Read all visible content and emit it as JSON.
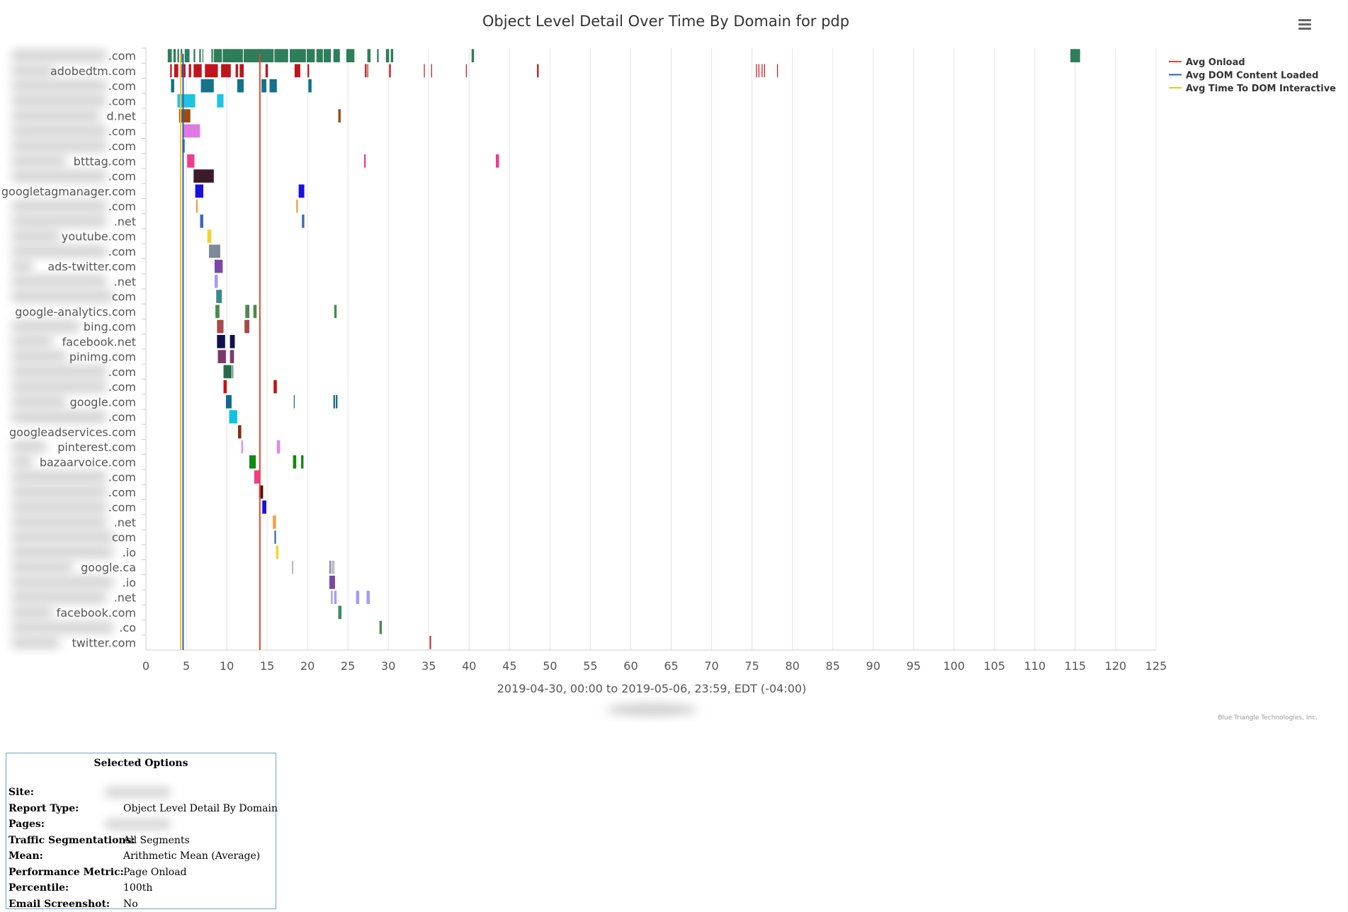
{
  "chart_data": {
    "type": "timeline",
    "title": "Object Level Detail Over Time By Domain for pdp",
    "xlabel": "2019-04-30, 00:00 to 2019-05-06, 23:59, EDT (-04:00)",
    "xlim": [
      0,
      125
    ],
    "xticks": [
      0,
      5,
      10,
      15,
      20,
      25,
      30,
      35,
      40,
      45,
      50,
      55,
      60,
      65,
      70,
      75,
      80,
      85,
      90,
      95,
      100,
      105,
      110,
      115,
      120,
      125
    ],
    "grid": true,
    "legend_position": "top-right",
    "markers": [
      {
        "name": "Avg Onload",
        "x": 14.1,
        "color": "#e8452c"
      },
      {
        "name": "Avg DOM Content Loaded",
        "x": 4.6,
        "color": "#2b5fb8"
      },
      {
        "name": "Avg Time To DOM Interactive",
        "x": 4.3,
        "color": "#f2c12e"
      }
    ],
    "domains": [
      {
        "label": ".com",
        "color": "#2e7d5b",
        "segments": [
          [
            2.7,
            3.2
          ],
          [
            3.4,
            3.7
          ],
          [
            3.9,
            4.1
          ],
          [
            4.3,
            4.5
          ],
          [
            4.8,
            5.4
          ],
          [
            5.9,
            6.1
          ],
          [
            6.6,
            6.8
          ],
          [
            7.0,
            7.1
          ],
          [
            8.1,
            8.3
          ],
          [
            8.4,
            9.4
          ],
          [
            9.5,
            12.0
          ],
          [
            12.1,
            15.8
          ],
          [
            15.9,
            17.6
          ],
          [
            17.8,
            19.8
          ],
          [
            19.9,
            20.9
          ],
          [
            21.1,
            21.9
          ],
          [
            22.0,
            22.9
          ],
          [
            23.2,
            24.0
          ],
          [
            24.8,
            25.8
          ],
          [
            27.4,
            27.8
          ],
          [
            28.6,
            28.8
          ],
          [
            29.7,
            30.1
          ],
          [
            30.3,
            30.6
          ],
          [
            40.3,
            40.6
          ],
          [
            114.4,
            115.6
          ]
        ]
      },
      {
        "label": "adobedtm.com",
        "color": "#c0141c",
        "segments": [
          [
            3.0,
            3.2
          ],
          [
            3.5,
            4.0
          ],
          [
            4.4,
            4.9
          ],
          [
            5.3,
            5.6
          ],
          [
            5.9,
            6.9
          ],
          [
            7.3,
            8.9
          ],
          [
            9.3,
            10.5
          ],
          [
            11.1,
            11.4
          ],
          [
            11.6,
            12.1
          ],
          [
            14.8,
            15.1
          ],
          [
            18.4,
            19.1
          ],
          [
            20.0,
            20.2
          ],
          [
            27.1,
            27.3
          ],
          [
            27.4,
            27.5
          ],
          [
            30.1,
            30.3
          ],
          [
            34.4,
            34.5
          ],
          [
            35.3,
            35.4
          ],
          [
            39.6,
            39.7
          ],
          [
            48.4,
            48.6
          ],
          [
            75.5,
            75.6
          ],
          [
            75.8,
            75.9
          ],
          [
            76.2,
            76.3
          ],
          [
            76.5,
            76.6
          ],
          [
            78.1,
            78.2
          ]
        ]
      },
      {
        "label": ".com",
        "color": "#14728a",
        "segments": [
          [
            3.1,
            3.5
          ],
          [
            6.8,
            8.4
          ],
          [
            11.3,
            12.1
          ],
          [
            14.3,
            14.9
          ],
          [
            15.3,
            16.2
          ],
          [
            20.1,
            20.5
          ]
        ]
      },
      {
        "label": ".com",
        "color": "#1ec3e0",
        "segments": [
          [
            3.9,
            6.1
          ],
          [
            8.8,
            9.6
          ]
        ]
      },
      {
        "label": "d.net",
        "color": "#9c4a10",
        "segments": [
          [
            4.1,
            5.5
          ],
          [
            23.8,
            24.1
          ]
        ]
      },
      {
        "label": ".com",
        "color": "#e07ae0",
        "segments": [
          [
            4.5,
            6.7
          ]
        ]
      },
      {
        "label": ".com",
        "color": "#2e7d5b",
        "segments": [
          [
            4.5,
            4.8
          ]
        ]
      },
      {
        "label": "btttag.com",
        "color": "#f03c8c",
        "segments": [
          [
            5.1,
            6.0
          ],
          [
            27.0,
            27.2
          ],
          [
            43.3,
            43.7
          ]
        ]
      },
      {
        "label": ".com",
        "color": "#3d1a2a",
        "segments": [
          [
            5.9,
            8.4
          ]
        ]
      },
      {
        "label": "googletagmanager.com",
        "color": "#1a10e0",
        "segments": [
          [
            6.1,
            7.1
          ],
          [
            18.9,
            19.6
          ]
        ]
      },
      {
        "label": ".com",
        "color": "#f2a040",
        "segments": [
          [
            6.2,
            6.4
          ],
          [
            18.6,
            18.8
          ]
        ]
      },
      {
        "label": ".net",
        "color": "#3c6ab0",
        "segments": [
          [
            6.7,
            7.1
          ],
          [
            19.3,
            19.6
          ]
        ]
      },
      {
        "label": "youtube.com",
        "color": "#f2d22e",
        "segments": [
          [
            7.6,
            8.1
          ]
        ]
      },
      {
        "label": ".com",
        "color": "#7f8a99",
        "segments": [
          [
            7.8,
            9.2
          ]
        ]
      },
      {
        "label": "ads-twitter.com",
        "color": "#7a48a8",
        "segments": [
          [
            8.5,
            9.5
          ]
        ]
      },
      {
        "label": ".net",
        "color": "#a89af0",
        "segments": [
          [
            8.5,
            8.9
          ]
        ]
      },
      {
        "label": "com",
        "color": "#3a8a8a",
        "segments": [
          [
            8.7,
            9.4
          ]
        ]
      },
      {
        "label": "google-analytics.com",
        "color": "#4a8a4a",
        "segments": [
          [
            8.6,
            9.1
          ],
          [
            12.3,
            12.8
          ],
          [
            13.3,
            13.7
          ],
          [
            23.3,
            23.6
          ]
        ]
      },
      {
        "label": "bing.com",
        "color": "#a84a4a",
        "segments": [
          [
            8.8,
            9.6
          ],
          [
            12.2,
            12.8
          ]
        ]
      },
      {
        "label": "facebook.net",
        "color": "#10104a",
        "segments": [
          [
            8.8,
            9.8
          ],
          [
            10.4,
            11.0
          ]
        ]
      },
      {
        "label": "pinimg.com",
        "color": "#7a3a6a",
        "segments": [
          [
            8.9,
            9.9
          ],
          [
            10.4,
            10.9
          ]
        ]
      },
      {
        "label": ".com",
        "color": "#2a6a4a",
        "segments": [
          [
            9.6,
            10.6
          ],
          [
            10.7,
            10.8
          ]
        ]
      },
      {
        "label": ".com",
        "color": "#c81010",
        "segments": [
          [
            9.6,
            10.0
          ],
          [
            15.8,
            16.2
          ]
        ]
      },
      {
        "label": "google.com",
        "color": "#106a8a",
        "segments": [
          [
            9.9,
            10.6
          ],
          [
            18.3,
            18.4
          ],
          [
            23.2,
            23.4
          ],
          [
            23.5,
            23.7
          ]
        ]
      },
      {
        "label": ".com",
        "color": "#10c3e0",
        "segments": [
          [
            10.3,
            11.3
          ]
        ]
      },
      {
        "label": "googleadservices.com",
        "color": "#8a2a10",
        "segments": [
          [
            11.4,
            11.8
          ]
        ]
      },
      {
        "label": "pinterest.com",
        "color": "#e088e8",
        "segments": [
          [
            11.8,
            12.0
          ],
          [
            16.2,
            16.6
          ]
        ]
      },
      {
        "label": "bazaarvoice.com",
        "color": "#108a10",
        "segments": [
          [
            12.8,
            13.6
          ],
          [
            18.2,
            18.6
          ],
          [
            19.2,
            19.5
          ]
        ]
      },
      {
        "label": ".com",
        "color": "#f03c8c",
        "segments": [
          [
            13.4,
            14.1
          ]
        ]
      },
      {
        "label": ".com",
        "color": "#4a1010",
        "segments": [
          [
            14.0,
            14.5
          ]
        ]
      },
      {
        "label": ".com",
        "color": "#1a10e0",
        "segments": [
          [
            14.4,
            14.9
          ]
        ]
      },
      {
        "label": ".net",
        "color": "#f2a040",
        "segments": [
          [
            15.7,
            16.1
          ]
        ]
      },
      {
        "label": "com",
        "color": "#3c6ab0",
        "segments": [
          [
            15.9,
            16.1
          ]
        ]
      },
      {
        "label": ".io",
        "color": "#f2d22e",
        "segments": [
          [
            16.1,
            16.4
          ]
        ]
      },
      {
        "label": "google.ca",
        "color": "#8a8aa8",
        "segments": [
          [
            18.1,
            18.2
          ],
          [
            22.7,
            22.9
          ],
          [
            23.0,
            23.1
          ],
          [
            23.2,
            23.3
          ]
        ]
      },
      {
        "label": ".io",
        "color": "#7a48a8",
        "segments": [
          [
            22.7,
            23.4
          ]
        ]
      },
      {
        "label": ".net",
        "color": "#a89af0",
        "segments": [
          [
            22.9,
            23.1
          ],
          [
            23.3,
            23.6
          ],
          [
            26.0,
            26.4
          ],
          [
            27.3,
            27.7
          ]
        ]
      },
      {
        "label": "facebook.com",
        "color": "#3a8a6a",
        "segments": [
          [
            23.8,
            24.2
          ]
        ]
      },
      {
        "label": ".co",
        "color": "#4a8a4a",
        "segments": [
          [
            28.9,
            29.2
          ]
        ]
      },
      {
        "label": "twitter.com",
        "color": "#a84a4a",
        "segments": [
          [
            35.1,
            35.3
          ]
        ]
      }
    ]
  },
  "credit": "Blue Triangle Technologies, Inc.",
  "menu": {
    "icon": "hamburger-icon"
  },
  "options": {
    "title": "Selected Options",
    "rows": [
      {
        "label": "Site:",
        "value": ""
      },
      {
        "label": "Report Type:",
        "value": "Object Level Detail By Domain"
      },
      {
        "label": "Pages:",
        "value": ""
      },
      {
        "label": "Traffic Segmentations:",
        "value": "All Segments"
      },
      {
        "label": "Mean:",
        "value": "Arithmetic Mean (Average)"
      },
      {
        "label": "Performance Metric:",
        "value": "Page Onload"
      },
      {
        "label": "Percentile:",
        "value": "100th"
      },
      {
        "label": "Email Screenshot:",
        "value": "No"
      }
    ]
  }
}
